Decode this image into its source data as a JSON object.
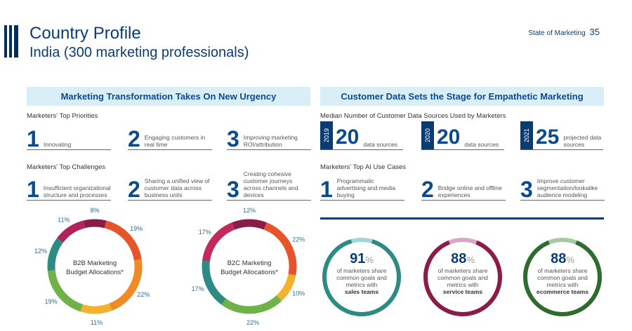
{
  "header": {
    "title": "Country Profile",
    "subtitle": "India (300 marketing professionals)",
    "report": "State of Marketing",
    "page": "35"
  },
  "left": {
    "heading": "Marketing Transformation Takes On New Urgency",
    "priorities_label": "Marketers' Top Priorities",
    "priorities": [
      {
        "n": "1",
        "text": "Innovating"
      },
      {
        "n": "2",
        "text": "Engaging customers in real time"
      },
      {
        "n": "3",
        "text": "Improving marketing ROI/attribution"
      }
    ],
    "challenges_label": "Marketers' Top Challenges",
    "challenges": [
      {
        "n": "1",
        "text": "Insufficient organizational structure and processes"
      },
      {
        "n": "2",
        "text": "Sharing a unified view of customer data across business units"
      },
      {
        "n": "3",
        "text": "Creating cohesive customer journeys across channels and devices"
      }
    ]
  },
  "right": {
    "heading": "Customer Data Sets the Stage for Empathetic Marketing",
    "sources_label": "Median Number of Customer Data Sources Used by Marketers",
    "sources": [
      {
        "year": "2019",
        "value": "20",
        "unit": "data sources"
      },
      {
        "year": "2020",
        "value": "20",
        "unit": "data sources"
      },
      {
        "year": "2021",
        "value": "25",
        "unit": "projected data sources"
      }
    ],
    "ai_label": "Marketers' Top AI Use Cases",
    "ai": [
      {
        "n": "1",
        "text": "Programmatic advertising and media buying"
      },
      {
        "n": "2",
        "text": "Bridge online and offline experiences"
      },
      {
        "n": "3",
        "text": "Improve customer segmentation/lookalike audience modeling"
      }
    ],
    "stats": [
      {
        "value": "91",
        "pct": "%",
        "line1": "of marketers share",
        "line2": "common goals and",
        "line3": "metrics with",
        "bold": "sales teams",
        "fraction": 0.91,
        "color": "#2e8b84",
        "track": "#9fd7d5"
      },
      {
        "value": "88",
        "pct": "%",
        "line1": "of marketers share",
        "line2": "common goals and",
        "line3": "metrics with",
        "bold": "service teams",
        "fraction": 0.88,
        "color": "#8a1c48",
        "track": "#d9a6c6"
      },
      {
        "value": "88",
        "pct": "%",
        "line1": "of marketers share",
        "line2": "common goals and",
        "line3": "metrics with",
        "bold": "ecommerce teams",
        "fraction": 0.88,
        "color": "#2e6b2e",
        "track": "#a7c9a2"
      }
    ]
  },
  "chart_data": [
    {
      "type": "pie",
      "title": "B2B Marketing Budget Allocations*",
      "labels": [
        "8%",
        "19%",
        "22%",
        "11%",
        "19%",
        "12%",
        "11%"
      ],
      "values": [
        8,
        19,
        22,
        11,
        19,
        12,
        11
      ],
      "colors": [
        "#8a1c48",
        "#e8542a",
        "#f08a24",
        "#f3b22e",
        "#6fb24a",
        "#2e8b84",
        "#b0235a"
      ]
    },
    {
      "type": "pie",
      "title": "B2C Marketing Budget Allocations*",
      "labels": [
        "12%",
        "22%",
        "10%",
        "22%",
        "17%",
        "17%"
      ],
      "values": [
        12,
        22,
        10,
        22,
        17,
        17
      ],
      "colors": [
        "#8a1c48",
        "#e8542a",
        "#f3b22e",
        "#6fb24a",
        "#2e8b84",
        "#c2295c"
      ]
    }
  ]
}
